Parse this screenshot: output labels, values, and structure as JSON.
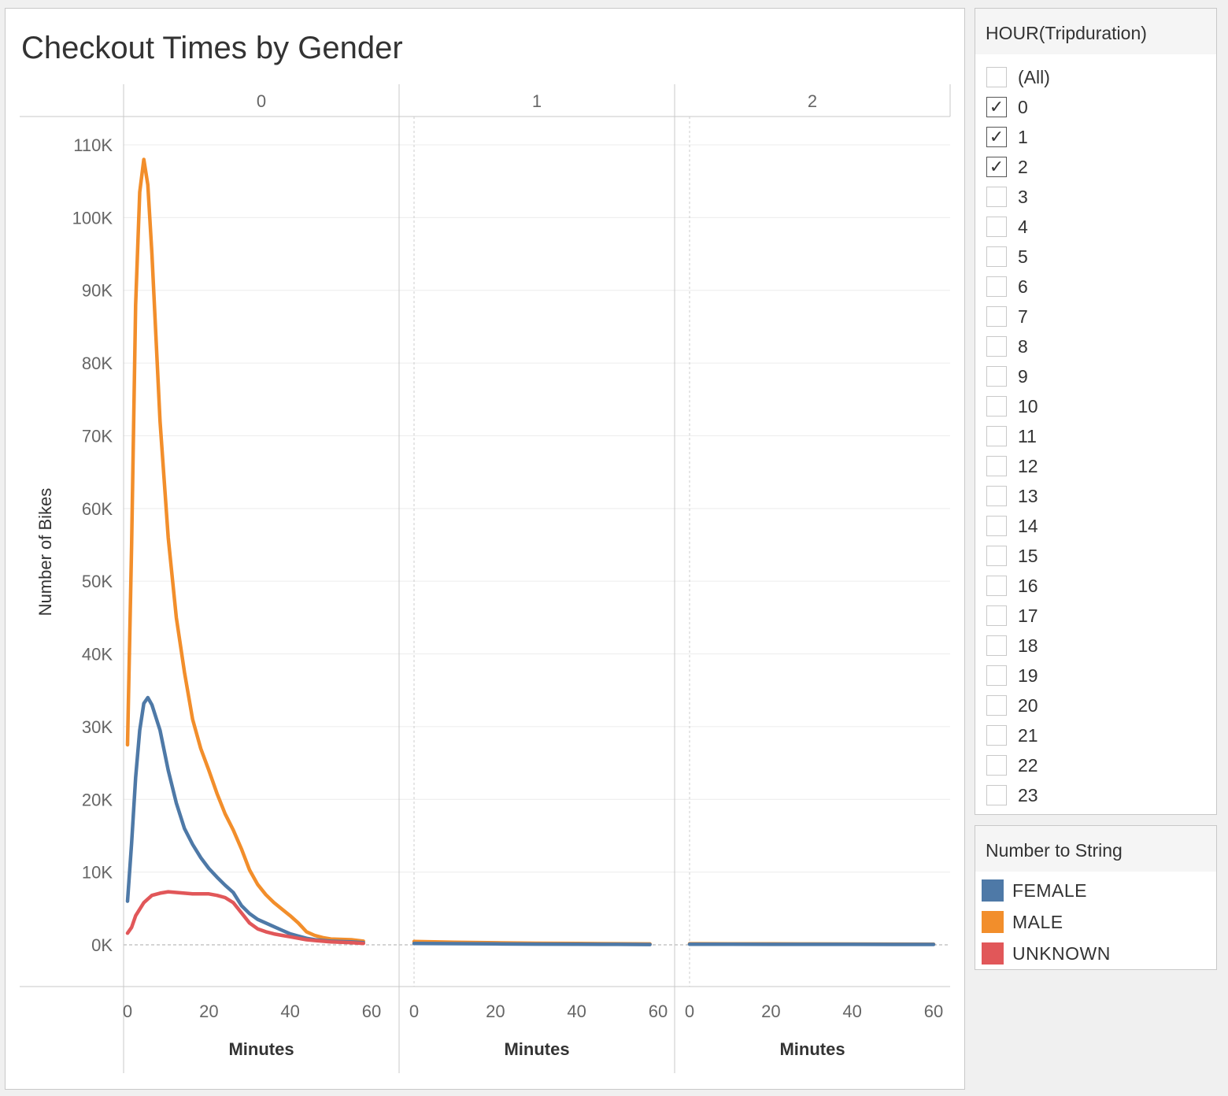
{
  "chart_data": {
    "type": "line",
    "title": "Checkout Times by Gender",
    "ylabel": "Number of Bikes",
    "xlabel": "Minutes",
    "panel_header": "HOUR(Tripduration)",
    "panels": [
      "0",
      "1",
      "2"
    ],
    "ylim": [
      0,
      110000
    ],
    "xlim": [
      0,
      60
    ],
    "yticks": [
      0,
      10000,
      20000,
      30000,
      40000,
      50000,
      60000,
      70000,
      80000,
      90000,
      100000,
      110000
    ],
    "ytick_labels": [
      "0K",
      "10K",
      "20K",
      "30K",
      "40K",
      "50K",
      "60K",
      "70K",
      "80K",
      "90K",
      "100K",
      "110K"
    ],
    "xticks": [
      0,
      20,
      40,
      60
    ],
    "xtick_labels": [
      "0",
      "20",
      "40",
      "60"
    ],
    "grid": true,
    "legend_position": "right",
    "series": [
      {
        "name": "MALE",
        "color": "#f28e2b",
        "panel": "0",
        "x": [
          0,
          1,
          2,
          3,
          4,
          5,
          6,
          8,
          10,
          12,
          14,
          16,
          18,
          20,
          22,
          24,
          26,
          28,
          30,
          32,
          34,
          36,
          38,
          40,
          42,
          44,
          46,
          48,
          50,
          55,
          58
        ],
        "y": [
          27500,
          55000,
          88000,
          103500,
          108000,
          104500,
          95000,
          72000,
          56000,
          45000,
          37500,
          31000,
          27000,
          24000,
          20800,
          18000,
          15800,
          13200,
          10300,
          8300,
          6900,
          5800,
          4900,
          4000,
          3000,
          1800,
          1300,
          1000,
          800,
          700,
          500
        ]
      },
      {
        "name": "FEMALE",
        "color": "#4e79a7",
        "panel": "0",
        "x": [
          0,
          1,
          2,
          3,
          4,
          5,
          6,
          8,
          10,
          12,
          14,
          16,
          18,
          20,
          22,
          24,
          26,
          28,
          30,
          32,
          34,
          36,
          38,
          40,
          42,
          44,
          46,
          48,
          50,
          55,
          58
        ],
        "y": [
          6000,
          14000,
          23000,
          29500,
          33200,
          34000,
          33000,
          29500,
          24000,
          19500,
          16000,
          13800,
          12000,
          10500,
          9300,
          8200,
          7200,
          5400,
          4300,
          3500,
          3000,
          2500,
          2000,
          1500,
          1200,
          900,
          700,
          600,
          500,
          400,
          300
        ]
      },
      {
        "name": "UNKNOWN",
        "color": "#e15759",
        "panel": "0",
        "x": [
          0,
          1,
          2,
          4,
          6,
          8,
          10,
          12,
          14,
          16,
          18,
          20,
          22,
          24,
          26,
          28,
          30,
          32,
          34,
          36,
          38,
          40,
          42,
          44,
          46,
          48,
          50,
          55,
          58
        ],
        "y": [
          1600,
          2400,
          4000,
          5800,
          6800,
          7100,
          7300,
          7200,
          7100,
          7000,
          7000,
          7000,
          6800,
          6500,
          5800,
          4400,
          3000,
          2200,
          1800,
          1500,
          1300,
          1100,
          900,
          700,
          600,
          500,
          400,
          300,
          200
        ]
      },
      {
        "name": "MALE",
        "color": "#f28e2b",
        "panel": "1",
        "x": [
          0,
          10,
          20,
          30,
          40,
          50,
          58
        ],
        "y": [
          450,
          350,
          280,
          220,
          180,
          150,
          120
        ]
      },
      {
        "name": "FEMALE",
        "color": "#4e79a7",
        "panel": "1",
        "x": [
          0,
          10,
          20,
          30,
          40,
          50,
          58
        ],
        "y": [
          200,
          160,
          130,
          100,
          80,
          60,
          40
        ]
      },
      {
        "name": "MALE",
        "color": "#f28e2b",
        "panel": "2",
        "x": [
          0,
          10,
          20,
          30,
          40,
          50,
          60
        ],
        "y": [
          150,
          140,
          130,
          120,
          110,
          100,
          90
        ]
      },
      {
        "name": "FEMALE",
        "color": "#4e79a7",
        "panel": "2",
        "x": [
          0,
          10,
          20,
          30,
          40,
          50,
          60
        ],
        "y": [
          80,
          75,
          70,
          65,
          60,
          55,
          50
        ]
      }
    ]
  },
  "filter": {
    "title": "HOUR(Tripduration)",
    "items": [
      {
        "label": "(All)",
        "checked": false
      },
      {
        "label": "0",
        "checked": true
      },
      {
        "label": "1",
        "checked": true
      },
      {
        "label": "2",
        "checked": true
      },
      {
        "label": "3",
        "checked": false
      },
      {
        "label": "4",
        "checked": false
      },
      {
        "label": "5",
        "checked": false
      },
      {
        "label": "6",
        "checked": false
      },
      {
        "label": "7",
        "checked": false
      },
      {
        "label": "8",
        "checked": false
      },
      {
        "label": "9",
        "checked": false
      },
      {
        "label": "10",
        "checked": false
      },
      {
        "label": "11",
        "checked": false
      },
      {
        "label": "12",
        "checked": false
      },
      {
        "label": "13",
        "checked": false
      },
      {
        "label": "14",
        "checked": false
      },
      {
        "label": "15",
        "checked": false
      },
      {
        "label": "16",
        "checked": false
      },
      {
        "label": "17",
        "checked": false
      },
      {
        "label": "18",
        "checked": false
      },
      {
        "label": "19",
        "checked": false
      },
      {
        "label": "20",
        "checked": false
      },
      {
        "label": "21",
        "checked": false
      },
      {
        "label": "22",
        "checked": false
      },
      {
        "label": "23",
        "checked": false
      }
    ]
  },
  "legend": {
    "title": "Number to String",
    "items": [
      {
        "label": "FEMALE",
        "color": "#4e79a7"
      },
      {
        "label": "MALE",
        "color": "#f28e2b"
      },
      {
        "label": "UNKNOWN",
        "color": "#e15759"
      }
    ]
  }
}
